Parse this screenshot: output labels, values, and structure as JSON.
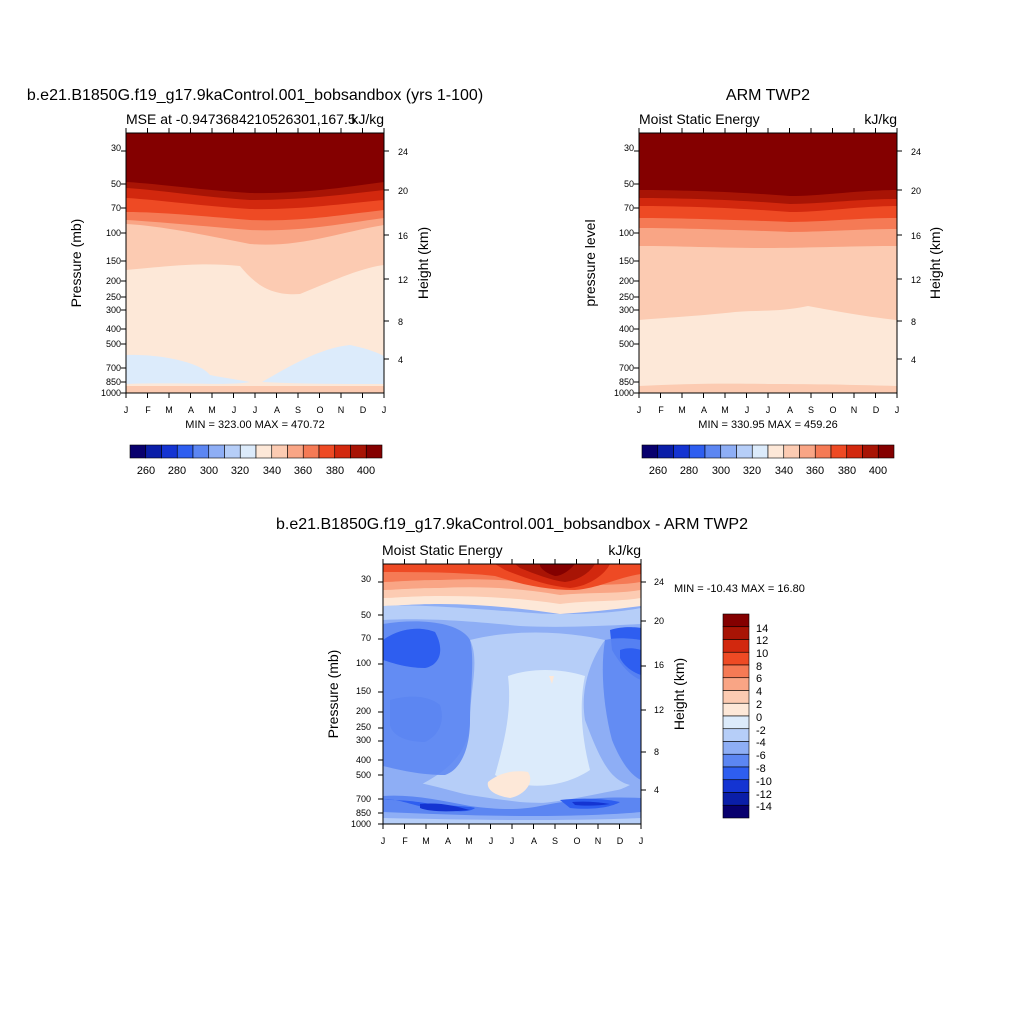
{
  "chart_data": [
    {
      "type": "contour",
      "id": "model",
      "title": "b.e21.B1850G.f19_g17.9kaControl.001_bobsandbox (yrs 1-100)",
      "subtitle_left": "MSE at -0.9473684210526301,167.5",
      "units": "kJ/kg",
      "ylabel_left": "Pressure (mb)",
      "ylabel_right": "Height (km)",
      "x_ticks": [
        "J",
        "F",
        "M",
        "A",
        "M",
        "J",
        "J",
        "A",
        "S",
        "O",
        "N",
        "D",
        "J"
      ],
      "y_ticks": [
        "30",
        "50",
        "70",
        "100",
        "150",
        "200",
        "250",
        "300",
        "400",
        "500",
        "700",
        "850",
        "1000"
      ],
      "y2_ticks": [
        "24",
        "20",
        "16",
        "12",
        "8",
        "4"
      ],
      "min_max": "MIN = 323.00 MAX = 470.72",
      "colorbar_labels": [
        "260",
        "280",
        "300",
        "320",
        "340",
        "360",
        "380",
        "400"
      ]
    },
    {
      "type": "contour",
      "id": "obs",
      "title": "ARM TWP2",
      "subtitle_left": "Moist Static Energy",
      "units": "kJ/kg",
      "ylabel_left": "pressure level",
      "ylabel_right": "Height (km)",
      "x_ticks": [
        "J",
        "F",
        "M",
        "A",
        "M",
        "J",
        "J",
        "A",
        "S",
        "O",
        "N",
        "D",
        "J"
      ],
      "y_ticks": [
        "30",
        "50",
        "70",
        "100",
        "150",
        "200",
        "250",
        "300",
        "400",
        "500",
        "700",
        "850",
        "1000"
      ],
      "y2_ticks": [
        "24",
        "20",
        "16",
        "12",
        "8",
        "4"
      ],
      "min_max": "MIN = 330.95 MAX = 459.26",
      "colorbar_labels": [
        "260",
        "280",
        "300",
        "320",
        "340",
        "360",
        "380",
        "400"
      ]
    },
    {
      "type": "contour",
      "id": "diff",
      "title": "b.e21.B1850G.f19_g17.9kaControl.001_bobsandbox - ARM TWP2",
      "subtitle_left": "Moist Static Energy",
      "units": "kJ/kg",
      "ylabel_left": "Pressure (mb)",
      "ylabel_right": "Height (km)",
      "x_ticks": [
        "J",
        "F",
        "M",
        "A",
        "M",
        "J",
        "J",
        "A",
        "S",
        "O",
        "N",
        "D",
        "J"
      ],
      "y_ticks": [
        "30",
        "50",
        "70",
        "100",
        "150",
        "200",
        "250",
        "300",
        "400",
        "500",
        "700",
        "850",
        "1000"
      ],
      "y2_ticks": [
        "24",
        "20",
        "16",
        "12",
        "8",
        "4"
      ],
      "min_max": "MIN = -10.43 MAX =  16.80",
      "colorbar_labels": [
        "14",
        "12",
        "10",
        "8",
        "6",
        "4",
        "2",
        "0",
        "-2",
        "-4",
        "-6",
        "-8",
        "-10",
        "-12",
        "-14"
      ]
    }
  ],
  "colors": {
    "seq": [
      "#08006e",
      "#0a1ea8",
      "#1434d2",
      "#2e5ef0",
      "#5c86f2",
      "#8eaef5",
      "#b6cef8",
      "#dcebfb",
      "#fde8d8",
      "#fccbb2",
      "#f9a585",
      "#f57a55",
      "#ee4a24",
      "#d2280e",
      "#a81405",
      "#840000"
    ],
    "diff": [
      "#840000",
      "#a81405",
      "#d2280e",
      "#ee4a24",
      "#f57a55",
      "#f9a585",
      "#fccbb2",
      "#fde8d8",
      "#dcebfb",
      "#b6cef8",
      "#8eaef5",
      "#5c86f2",
      "#2e5ef0",
      "#1434d2",
      "#0a1ea8",
      "#08006e"
    ]
  }
}
